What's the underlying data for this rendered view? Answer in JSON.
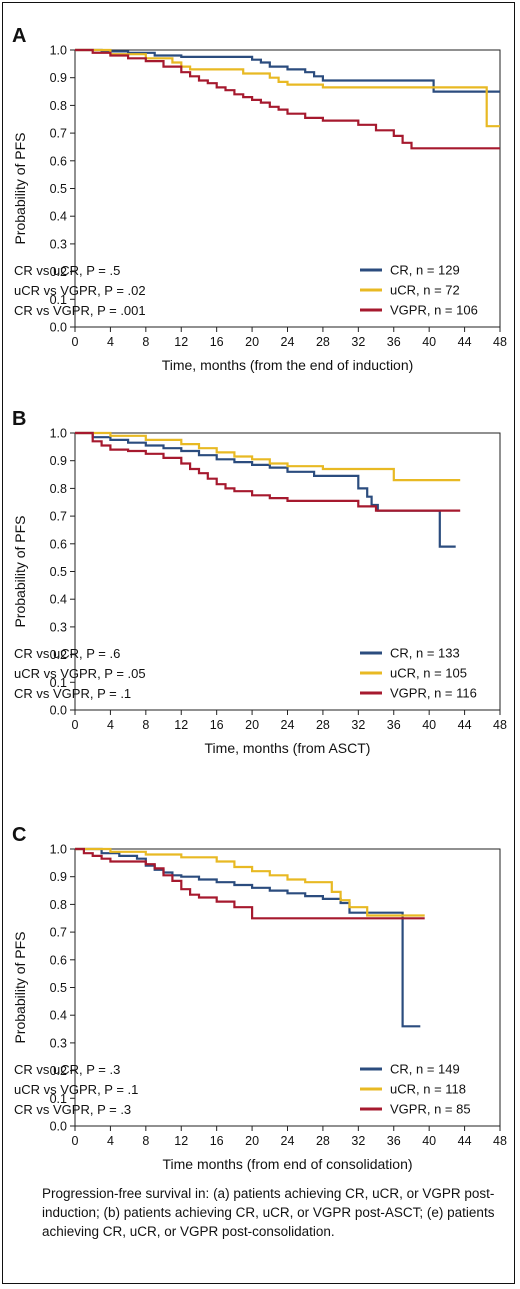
{
  "figure": {
    "caption": "Progression-free survival in: (a) patients achieving CR, uCR, or VGPR post-induction; (b) patients achieving CR, uCR, or VGPR post-ASCT; (e) patients achieving CR, uCR, or VGPR post-consolidation."
  },
  "colors": {
    "CR": "#2b4c7e",
    "uCR": "#e8b923",
    "VGPR": "#a6192e"
  },
  "chart_data": [
    {
      "type": "line",
      "panel": "A",
      "xlabel": "Time, months (from the end of induction)",
      "ylabel": "Probability of PFS",
      "xlim": [
        0,
        48
      ],
      "ylim": [
        0,
        1.0
      ],
      "x_ticks": [
        "0",
        "4",
        "8",
        "12",
        "16",
        "20",
        "24",
        "28",
        "32",
        "36",
        "40",
        "44",
        "48"
      ],
      "y_ticks": [
        "0.0",
        "0.1",
        "0.2",
        "0.3",
        "0.4",
        "0.5",
        "0.6",
        "0.7",
        "0.8",
        "0.9",
        "1.0"
      ],
      "grid": false,
      "legend_position": "bottom-right",
      "stats": [
        "CR vs uCR, P = .5",
        "uCR vs VGPR, P = .02",
        "CR vs VGPR, P = .001"
      ],
      "series": [
        {
          "name": "CR, n = 129",
          "key": "CR",
          "x": [
            0,
            3,
            6,
            9,
            12,
            15,
            19,
            20,
            21,
            22,
            24,
            26,
            27,
            28,
            32,
            36,
            40,
            40.5,
            48
          ],
          "y": [
            1.0,
            0.995,
            0.99,
            0.98,
            0.975,
            0.975,
            0.975,
            0.965,
            0.955,
            0.94,
            0.93,
            0.92,
            0.905,
            0.89,
            0.89,
            0.89,
            0.89,
            0.85,
            0.85
          ]
        },
        {
          "name": "uCR, n = 72",
          "key": "uCR",
          "x": [
            0,
            4,
            8,
            11,
            12,
            13,
            18,
            19,
            22,
            23,
            24,
            28,
            44,
            46.5,
            46.5,
            48
          ],
          "y": [
            1.0,
            0.985,
            0.97,
            0.955,
            0.94,
            0.93,
            0.93,
            0.915,
            0.9,
            0.885,
            0.875,
            0.865,
            0.865,
            0.86,
            0.725,
            0.725
          ]
        },
        {
          "name": "VGPR, n = 106",
          "key": "VGPR",
          "x": [
            0,
            2,
            4,
            6,
            8,
            10,
            12,
            13,
            14,
            15,
            16,
            17,
            18,
            19,
            20,
            21,
            22,
            23,
            24,
            26,
            28,
            32,
            34,
            36,
            37,
            38,
            48
          ],
          "y": [
            1.0,
            0.99,
            0.98,
            0.97,
            0.96,
            0.94,
            0.92,
            0.905,
            0.89,
            0.88,
            0.865,
            0.855,
            0.84,
            0.83,
            0.82,
            0.81,
            0.795,
            0.785,
            0.77,
            0.755,
            0.745,
            0.73,
            0.71,
            0.69,
            0.665,
            0.645,
            0.645
          ]
        }
      ]
    },
    {
      "type": "line",
      "panel": "B",
      "xlabel": "Time, months (from ASCT)",
      "ylabel": "Probability of PFS",
      "xlim": [
        0,
        48
      ],
      "ylim": [
        0,
        1.0
      ],
      "x_ticks": [
        "0",
        "4",
        "8",
        "12",
        "16",
        "20",
        "24",
        "28",
        "32",
        "36",
        "40",
        "44",
        "48"
      ],
      "y_ticks": [
        "0.0",
        "0.1",
        "0.2",
        "0.3",
        "0.4",
        "0.5",
        "0.6",
        "0.7",
        "0.8",
        "0.9",
        "1.0"
      ],
      "grid": false,
      "legend_position": "bottom-right",
      "stats": [
        "CR vs uCR, P = .6",
        "uCR vs VGPR, P = .05",
        "CR vs VGPR, P = .1"
      ],
      "series": [
        {
          "name": "CR, n = 133",
          "key": "CR",
          "x": [
            0,
            2,
            4,
            6,
            8,
            10,
            12,
            14,
            16,
            18,
            20,
            22,
            24,
            27,
            30,
            32,
            33,
            33.5,
            34.2,
            41,
            41.2,
            43
          ],
          "y": [
            1.0,
            0.985,
            0.975,
            0.965,
            0.955,
            0.945,
            0.935,
            0.92,
            0.905,
            0.895,
            0.885,
            0.875,
            0.86,
            0.845,
            0.845,
            0.8,
            0.77,
            0.74,
            0.72,
            0.72,
            0.59,
            0.59
          ]
        },
        {
          "name": "uCR, n = 105",
          "key": "uCR",
          "x": [
            0,
            4,
            8,
            12,
            14,
            16,
            18,
            20,
            22,
            24,
            28,
            35,
            36,
            43.5
          ],
          "y": [
            1.0,
            0.99,
            0.975,
            0.96,
            0.945,
            0.93,
            0.915,
            0.905,
            0.89,
            0.88,
            0.87,
            0.87,
            0.83,
            0.83
          ]
        },
        {
          "name": "VGPR, n = 116",
          "key": "VGPR",
          "x": [
            0,
            2,
            3,
            4,
            6,
            8,
            10,
            12,
            13,
            14,
            15,
            16,
            17,
            18,
            20,
            22,
            24,
            28,
            32,
            34,
            40,
            43.5
          ],
          "y": [
            1.0,
            0.97,
            0.955,
            0.94,
            0.935,
            0.925,
            0.91,
            0.89,
            0.87,
            0.855,
            0.835,
            0.815,
            0.8,
            0.79,
            0.775,
            0.765,
            0.755,
            0.755,
            0.735,
            0.72,
            0.72,
            0.72
          ]
        }
      ]
    },
    {
      "type": "line",
      "panel": "C",
      "xlabel": "Time months (from end of consolidation)",
      "ylabel": "Probability of PFS",
      "xlim": [
        0,
        48
      ],
      "ylim": [
        0,
        1.0
      ],
      "x_ticks": [
        "0",
        "4",
        "8",
        "12",
        "16",
        "20",
        "24",
        "28",
        "32",
        "36",
        "40",
        "44",
        "48"
      ],
      "y_ticks": [
        "0.0",
        "0.1",
        "0.2",
        "0.3",
        "0.4",
        "0.5",
        "0.6",
        "0.7",
        "0.8",
        "0.9",
        "1.0"
      ],
      "grid": false,
      "legend_position": "bottom-right",
      "stats": [
        "CR vs uCR, P = .3",
        "uCR vs VGPR, P = .1",
        "CR vs VGPR, P = .3"
      ],
      "series": [
        {
          "name": "CR, n = 149",
          "key": "CR",
          "x": [
            0,
            3,
            5,
            7,
            8,
            9,
            10,
            11,
            12,
            14,
            16,
            18,
            20,
            22,
            24,
            26,
            28,
            30,
            31,
            37,
            37,
            39
          ],
          "y": [
            1.0,
            0.985,
            0.975,
            0.965,
            0.94,
            0.925,
            0.915,
            0.905,
            0.9,
            0.89,
            0.88,
            0.87,
            0.86,
            0.85,
            0.84,
            0.83,
            0.82,
            0.805,
            0.77,
            0.77,
            0.36,
            0.36
          ]
        },
        {
          "name": "uCR, n = 118",
          "key": "uCR",
          "x": [
            0,
            4,
            8,
            12,
            16,
            18,
            20,
            22,
            24,
            26,
            28,
            29,
            30,
            31,
            33,
            39.5
          ],
          "y": [
            1.0,
            0.99,
            0.98,
            0.97,
            0.955,
            0.935,
            0.92,
            0.905,
            0.89,
            0.88,
            0.88,
            0.845,
            0.815,
            0.79,
            0.76,
            0.76
          ]
        },
        {
          "name": "VGPR, n = 85",
          "key": "VGPR",
          "x": [
            0,
            1,
            2,
            3,
            4,
            6,
            8,
            9,
            10,
            11,
            12,
            13,
            14,
            16,
            18,
            20,
            24,
            32,
            39.5
          ],
          "y": [
            1.0,
            0.985,
            0.975,
            0.965,
            0.955,
            0.955,
            0.945,
            0.93,
            0.905,
            0.885,
            0.855,
            0.835,
            0.825,
            0.81,
            0.79,
            0.75,
            0.75,
            0.75,
            0.75
          ]
        }
      ]
    }
  ]
}
